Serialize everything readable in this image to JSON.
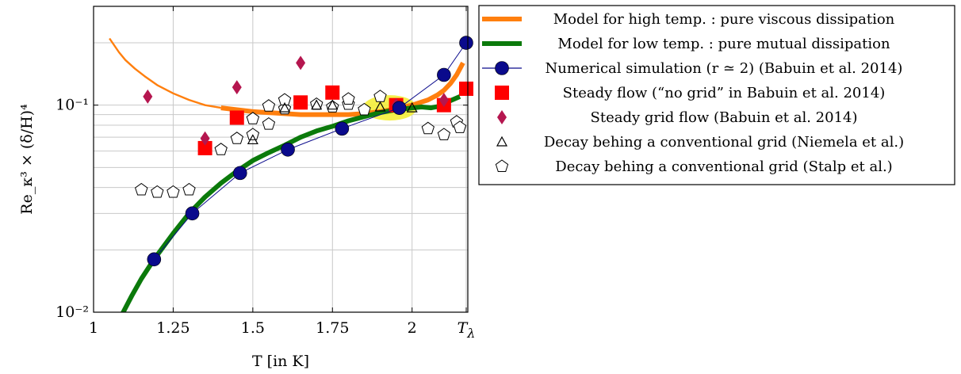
{
  "chart_data": {
    "type": "scatter",
    "xlabel": "T [in K]",
    "ylabel": "Re_κ³ × (δ/H)⁴",
    "x_scale": "linear",
    "y_scale": "log",
    "xlim": [
      1.0,
      2.175
    ],
    "ylim": [
      0.01,
      0.3
    ],
    "x_ticks": [
      1,
      1.25,
      1.5,
      1.75,
      2,
      2.17
    ],
    "x_tick_labels": [
      "1",
      "1.25",
      "1.5",
      "1.75",
      "2",
      "Tλ"
    ],
    "y_ticks": [
      0.01,
      0.1
    ],
    "y_tick_labels": [
      "10⁻²",
      "10⁻¹"
    ],
    "grid": true,
    "legend_position": "right, outside plot",
    "series": [
      {
        "name": "Model for high temp. : pure viscous dissipation",
        "kind": "line",
        "color": "#ff7f0e",
        "x": [
          1.05,
          1.08,
          1.1,
          1.13,
          1.16,
          1.2,
          1.25,
          1.3,
          1.35,
          1.4,
          1.45,
          1.5,
          1.55,
          1.6,
          1.65,
          1.7,
          1.75,
          1.8,
          1.85,
          1.9,
          1.95,
          2.0,
          2.05,
          2.08,
          2.1,
          2.12,
          2.14,
          2.16
        ],
        "y": [
          0.21,
          0.18,
          0.165,
          0.15,
          0.138,
          0.125,
          0.114,
          0.106,
          0.1,
          0.097,
          0.095,
          0.093,
          0.092,
          0.091,
          0.09,
          0.09,
          0.09,
          0.09,
          0.091,
          0.093,
          0.096,
          0.1,
          0.106,
          0.112,
          0.118,
          0.127,
          0.14,
          0.16
        ]
      },
      {
        "name": "Model for low temp. : pure mutual dissipation",
        "kind": "line",
        "color": "#0b7a0b",
        "x": [
          1.09,
          1.12,
          1.15,
          1.19,
          1.25,
          1.3,
          1.35,
          1.4,
          1.45,
          1.5,
          1.55,
          1.6,
          1.65,
          1.7,
          1.75,
          1.8,
          1.85,
          1.9,
          1.95,
          2.0,
          2.03,
          2.06,
          2.09,
          2.12,
          2.15
        ],
        "y": [
          0.0098,
          0.012,
          0.0145,
          0.018,
          0.024,
          0.03,
          0.036,
          0.042,
          0.048,
          0.054,
          0.059,
          0.064,
          0.07,
          0.075,
          0.079,
          0.084,
          0.088,
          0.092,
          0.095,
          0.097,
          0.098,
          0.097,
          0.099,
          0.105,
          0.11
        ]
      },
      {
        "name": "Numerical simulation (r ≃ 2) (Babuin et al. 2014)",
        "kind": "line-marker",
        "color": "#0a0a8c",
        "x": [
          1.19,
          1.31,
          1.46,
          1.61,
          1.78,
          1.96,
          2.1,
          2.17
        ],
        "y": [
          0.018,
          0.03,
          0.047,
          0.061,
          0.077,
          0.097,
          0.14,
          0.2
        ]
      },
      {
        "name": "Steady flow (“no grid” in Babuin et al. 2014)",
        "kind": "marker-square",
        "color": "#ff0000",
        "x": [
          1.35,
          1.45,
          1.65,
          1.75,
          1.95,
          2.1,
          2.17
        ],
        "y": [
          0.062,
          0.087,
          0.103,
          0.115,
          0.1,
          0.1,
          0.12
        ]
      },
      {
        "name": "Steady grid flow (Babuin et al. 2014)",
        "kind": "marker-diamond",
        "color": "#b5164f",
        "x": [
          1.17,
          1.35,
          1.45,
          1.65,
          1.95,
          2.1
        ],
        "y": [
          0.11,
          0.069,
          0.122,
          0.16,
          0.1,
          0.106
        ]
      },
      {
        "name": "Decay behing a conventional grid (Niemela et al.)",
        "kind": "marker-triangle",
        "color": "#000000",
        "x": [
          1.35,
          1.5,
          1.6,
          1.7,
          1.75,
          1.9,
          2.0,
          2.1
        ],
        "y": [
          0.062,
          0.068,
          0.097,
          0.1,
          0.1,
          0.098,
          0.097,
          0.1
        ]
      },
      {
        "name": "Decay behing a conventional grid (Stalp et al.)",
        "kind": "marker-pentagon",
        "color": "#000000",
        "x": [
          1.15,
          1.2,
          1.25,
          1.3,
          1.35,
          1.4,
          1.45,
          1.5,
          1.5,
          1.55,
          1.55,
          1.6,
          1.6,
          1.65,
          1.7,
          1.75,
          1.8,
          1.8,
          1.85,
          1.9,
          1.95,
          2.05,
          2.1,
          2.14,
          2.15
        ],
        "y": [
          0.039,
          0.038,
          0.038,
          0.039,
          0.062,
          0.061,
          0.069,
          0.072,
          0.086,
          0.081,
          0.099,
          0.096,
          0.106,
          0.102,
          0.101,
          0.098,
          0.101,
          0.107,
          0.095,
          0.11,
          0.098,
          0.077,
          0.072,
          0.083,
          0.078
        ]
      }
    ],
    "annotations": [
      {
        "shape": "yellow highlight",
        "x": 1.93,
        "y": 0.097,
        "color": "#f4ee3a"
      }
    ]
  }
}
